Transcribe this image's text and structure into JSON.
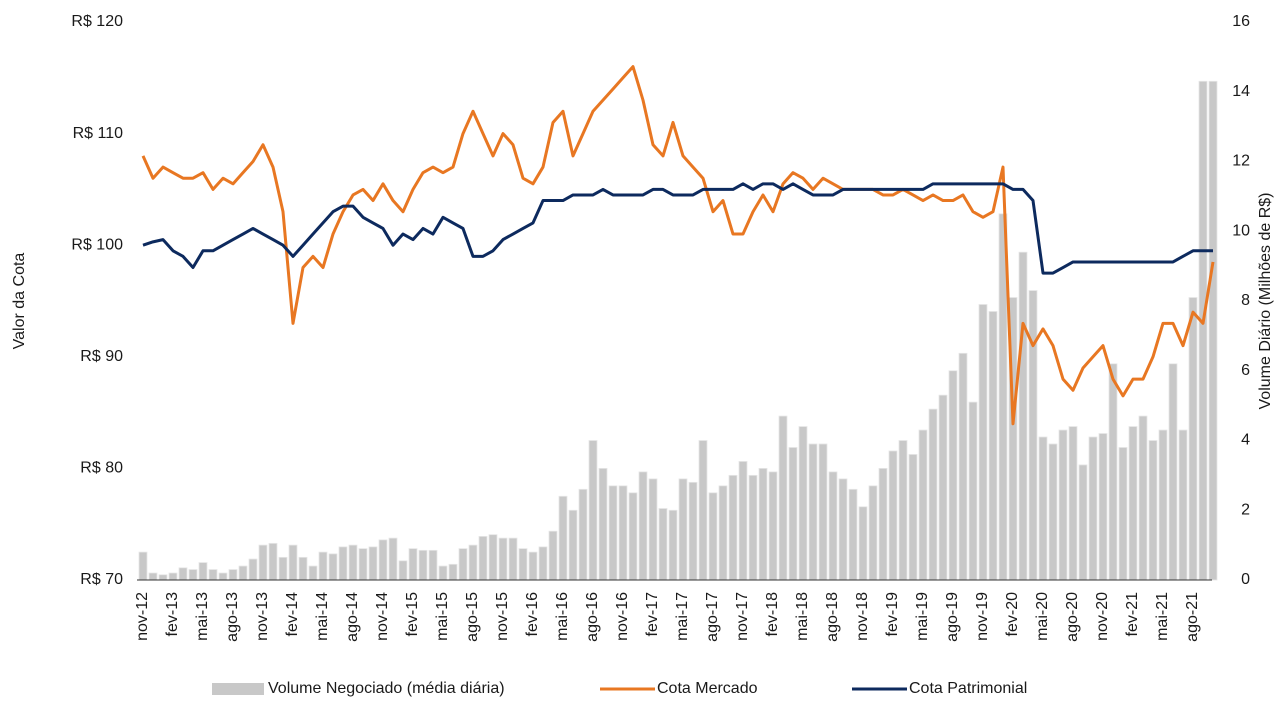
{
  "chart_data": {
    "type": "combo",
    "y_label": "Valor da Cota",
    "y2_label": "Volume Diário (Milhões de R$)",
    "categories": [
      "nov-12",
      null,
      null,
      "fev-13",
      null,
      null,
      "mai-13",
      null,
      null,
      "ago-13",
      null,
      null,
      "nov-13",
      null,
      null,
      "fev-14",
      null,
      null,
      "mai-14",
      null,
      null,
      "ago-14",
      null,
      null,
      "nov-14",
      null,
      null,
      "fev-15",
      null,
      null,
      "mai-15",
      null,
      null,
      "ago-15",
      null,
      null,
      "nov-15",
      null,
      null,
      "fev-16",
      null,
      null,
      "mai-16",
      null,
      null,
      "ago-16",
      null,
      null,
      "nov-16",
      null,
      null,
      "fev-17",
      null,
      null,
      "mai-17",
      null,
      null,
      "ago-17",
      null,
      null,
      "nov-17",
      null,
      null,
      "fev-18",
      null,
      null,
      "mai-18",
      null,
      null,
      "ago-18",
      null,
      null,
      "nov-18",
      null,
      null,
      "fev-19",
      null,
      null,
      "mai-19",
      null,
      null,
      "ago-19",
      null,
      null,
      "nov-19",
      null,
      null,
      "fev-20",
      null,
      null,
      "mai-20",
      null,
      null,
      "ago-20",
      null,
      null,
      "nov-20",
      null,
      null,
      "fev-21",
      null,
      null,
      "mai-21",
      null,
      null,
      "ago-21",
      null,
      null
    ],
    "ylim": [
      70,
      120
    ],
    "yticks": [
      {
        "value": 70,
        "label": "R$ 70"
      },
      {
        "value": 80,
        "label": "R$ 80"
      },
      {
        "value": 90,
        "label": "R$ 90"
      },
      {
        "value": 100,
        "label": "R$ 100"
      },
      {
        "value": 110,
        "label": "R$ 110"
      },
      {
        "value": 120,
        "label": "R$ 120"
      }
    ],
    "y2lim": [
      0,
      16
    ],
    "y2ticks": [
      0,
      2,
      4,
      6,
      8,
      10,
      12,
      14,
      16
    ],
    "series": [
      {
        "name": "Volume Negociado (média diária)",
        "type": "bar",
        "axis": "y2",
        "color": "#c8c8c8",
        "values": [
          0.8,
          0.2,
          0.15,
          0.2,
          0.35,
          0.3,
          0.5,
          0.3,
          0.2,
          0.3,
          0.4,
          0.6,
          1.0,
          1.05,
          0.65,
          1.0,
          0.65,
          0.4,
          0.8,
          0.75,
          0.95,
          1.0,
          0.9,
          0.95,
          1.15,
          1.2,
          0.55,
          0.9,
          0.85,
          0.85,
          0.4,
          0.45,
          0.9,
          1.0,
          1.25,
          1.3,
          1.2,
          1.2,
          0.9,
          0.8,
          0.95,
          1.4,
          2.4,
          2.0,
          2.6,
          4.0,
          3.2,
          2.7,
          2.7,
          2.5,
          3.1,
          2.9,
          2.05,
          2.0,
          2.9,
          2.8,
          4.0,
          2.5,
          2.7,
          3.0,
          3.4,
          3.0,
          3.2,
          3.1,
          4.7,
          3.8,
          4.4,
          3.9,
          3.9,
          3.1,
          2.9,
          2.6,
          2.1,
          2.7,
          3.2,
          3.7,
          4.0,
          3.6,
          4.3,
          4.9,
          5.3,
          6.0,
          6.5,
          5.1,
          7.9,
          7.7,
          10.5,
          8.1,
          9.4,
          8.3,
          4.1,
          3.9,
          4.3,
          4.4,
          3.3,
          4.1,
          4.2,
          6.2,
          3.8,
          4.4,
          4.7,
          4.0,
          4.3,
          6.2,
          4.3,
          8.1,
          14.3,
          14.3
        ]
      },
      {
        "name": "Cota Mercado",
        "type": "line",
        "color": "#e87722",
        "values": [
          108,
          106,
          107,
          106.5,
          106,
          106,
          106.5,
          105,
          106,
          105.5,
          106.5,
          107.5,
          109,
          107,
          103,
          93,
          98,
          99,
          98,
          101,
          103,
          104.5,
          105,
          104,
          105.5,
          104,
          103,
          105,
          106.5,
          107,
          106.5,
          107,
          110,
          112,
          110,
          108,
          110,
          109,
          106,
          105.5,
          107,
          111,
          112,
          108,
          110,
          112,
          113,
          114,
          115,
          116,
          113,
          109,
          108,
          111,
          108,
          107,
          106,
          103,
          104,
          101,
          101,
          103,
          104.5,
          103,
          105.5,
          106.5,
          106,
          105,
          106,
          105.5,
          105,
          105,
          105,
          105,
          104.5,
          104.5,
          105,
          104.5,
          104,
          104.5,
          104,
          104,
          104.5,
          103,
          102.5,
          103,
          107,
          84,
          93,
          91,
          92.5,
          91,
          88,
          87,
          89,
          90,
          91,
          88,
          86.5,
          88,
          88,
          90,
          93,
          93,
          91,
          94,
          93,
          98.5
        ]
      },
      {
        "name": "Cota Patrimonial",
        "type": "line",
        "color": "#0d2a5e",
        "values": [
          100,
          100.3,
          100.5,
          99.5,
          99,
          98,
          99.5,
          99.5,
          100,
          100.5,
          101,
          101.5,
          101,
          100.5,
          100,
          99,
          100,
          101,
          102,
          103,
          103.5,
          103.5,
          102.5,
          102,
          101.5,
          100,
          101,
          100.5,
          101.5,
          101,
          102.5,
          102,
          101.5,
          99,
          99,
          99.5,
          100.5,
          101,
          101.5,
          102,
          104,
          104,
          104,
          104.5,
          104.5,
          104.5,
          105,
          104.5,
          104.5,
          104.5,
          104.5,
          105,
          105,
          104.5,
          104.5,
          104.5,
          105,
          105,
          105,
          105,
          105.5,
          105,
          105.5,
          105.5,
          105,
          105.5,
          105,
          104.5,
          104.5,
          104.5,
          105,
          105,
          105,
          105,
          105,
          105,
          105,
          105,
          105,
          105.5,
          105.5,
          105.5,
          105.5,
          105.5,
          105.5,
          105.5,
          105.5,
          105,
          105,
          104,
          97.5,
          97.5,
          98,
          98.5,
          98.5,
          98.5,
          98.5,
          98.5,
          98.5,
          98.5,
          98.5,
          98.5,
          98.5,
          98.5,
          99,
          99.5,
          99.5,
          99.5
        ]
      }
    ]
  }
}
